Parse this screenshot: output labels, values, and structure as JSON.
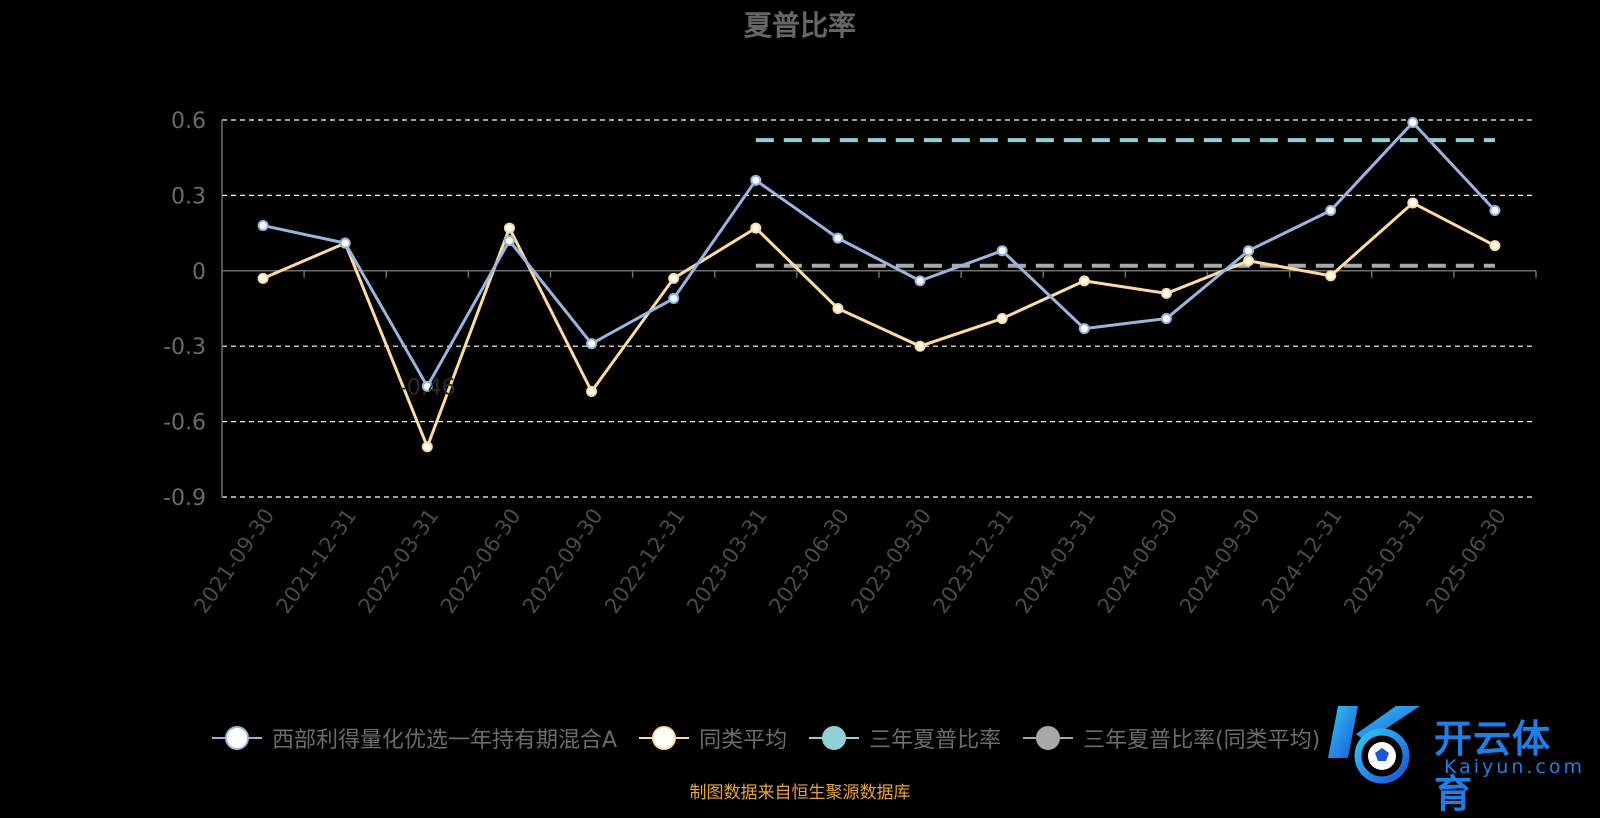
{
  "chart_data": {
    "type": "line",
    "title": "夏普比率",
    "categories": [
      "2021-09-30",
      "2021-12-31",
      "2022-03-31",
      "2022-06-30",
      "2022-09-30",
      "2022-12-31",
      "2023-03-31",
      "2023-06-30",
      "2023-09-30",
      "2023-12-31",
      "2024-03-31",
      "2024-06-30",
      "2024-09-30",
      "2024-12-31",
      "2025-03-31",
      "2025-06-30"
    ],
    "ylim": [
      -0.9,
      0.6
    ],
    "yticks": [
      0.6,
      0.3,
      0,
      -0.3,
      -0.6,
      -0.9
    ],
    "ytick_labels": [
      "0.6",
      "0.3",
      "0",
      "-0.3",
      "-0.6",
      "-0.9"
    ],
    "grid": "horizontal dashed",
    "legend_position": "bottom",
    "series": [
      {
        "name": "西部利得量化优选一年持有期混合A",
        "color": "#9ab4e0",
        "values": [
          0.18,
          0.11,
          -0.46,
          0.12,
          -0.29,
          -0.11,
          0.36,
          0.13,
          -0.04,
          0.08,
          -0.23,
          -0.19,
          0.08,
          0.24,
          0.59,
          0.24
        ]
      },
      {
        "name": "同类平均",
        "color": "#fcdca0",
        "values": [
          -0.03,
          0.11,
          -0.7,
          0.17,
          -0.48,
          -0.03,
          0.17,
          -0.15,
          -0.3,
          -0.19,
          -0.04,
          -0.09,
          0.04,
          -0.02,
          0.27,
          0.1
        ]
      },
      {
        "name": "三年夏普比率",
        "color": "#8fd1d6",
        "style": "dashed",
        "start_category": "2023-03-31",
        "end_category": "2025-06-30",
        "value": 0.52
      },
      {
        "name": "三年夏普比率(同类平均)",
        "color": "#a9a9a9",
        "style": "dashed",
        "start_category": "2023-03-31",
        "end_category": "2025-06-30",
        "value": 0.02
      }
    ],
    "annotations": [
      "-0.46"
    ]
  },
  "legend": [
    {
      "label": "西部利得量化优选一年持有期混合A",
      "color": "#9ab4e0"
    },
    {
      "label": "同类平均",
      "color": "#fcdca0"
    },
    {
      "label": "三年夏普比率",
      "color": "#8fd1d6"
    },
    {
      "label": "三年夏普比率(同类平均)",
      "color": "#a9a9a9"
    }
  ],
  "source": "制图数据来自恒生聚源数据库",
  "watermark": {
    "cn": "开云体育",
    "en": "Kaiyun.com",
    "color": "#1e7fe6"
  }
}
